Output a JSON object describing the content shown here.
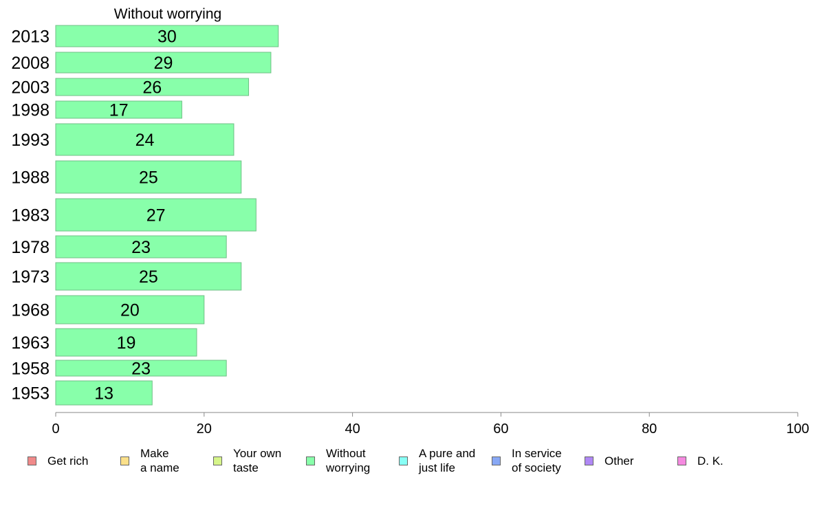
{
  "chart_data": {
    "type": "bar",
    "orientation": "horizontal",
    "title": "Without worrying",
    "categories": [
      "2013",
      "2008",
      "2003",
      "1998",
      "1993",
      "1988",
      "1983",
      "1978",
      "1973",
      "1968",
      "1963",
      "1958",
      "1953"
    ],
    "values": [
      30,
      29,
      26,
      17,
      24,
      25,
      27,
      23,
      25,
      20,
      19,
      23,
      13
    ],
    "data_labels": [
      "30",
      "29",
      "26",
      "17",
      "24",
      "25",
      "27",
      "23",
      "25",
      "20",
      "19",
      "23",
      "13"
    ],
    "xlim": [
      0,
      100
    ],
    "x_ticks": [
      0,
      20,
      40,
      60,
      80,
      100
    ],
    "x_tick_labels": [
      "0",
      "20",
      "40",
      "60",
      "80",
      "100"
    ],
    "bar_color": "#88ffaa",
    "grid": false,
    "legend_position": "bottom",
    "legend": [
      {
        "label": "Get rich",
        "color": "#f08a8a"
      },
      {
        "label": "Make\na name",
        "color": "#fbe08a"
      },
      {
        "label": "Your own\ntaste",
        "color": "#d6f58a"
      },
      {
        "label": "Without\nworrying",
        "color": "#88ffaa"
      },
      {
        "label": "A pure and\njust life",
        "color": "#88fff5"
      },
      {
        "label": "In service\nof society",
        "color": "#88a8f5"
      },
      {
        "label": "Other",
        "color": "#b088f5"
      },
      {
        "label": "D. K.",
        "color": "#f58ae0"
      }
    ]
  }
}
